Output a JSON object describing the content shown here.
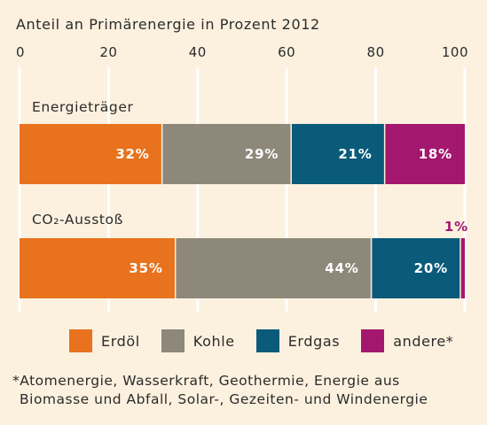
{
  "chart_data": {
    "type": "bar",
    "orientation": "horizontal",
    "stacked": true,
    "title": "Anteil an Primärenergie in Prozent 2012",
    "xlim": [
      0,
      100
    ],
    "x_ticks": [
      "0",
      "20",
      "40",
      "60",
      "80",
      "100"
    ],
    "grid": true,
    "categories": [
      "Energieträger",
      "CO₂-Ausstoß"
    ],
    "series": [
      {
        "name": "Erdöl",
        "color": "#e8721d",
        "values": [
          32,
          35
        ],
        "labels": [
          "32%",
          "35%"
        ]
      },
      {
        "name": "Kohle",
        "color": "#8e887a",
        "values": [
          29,
          44
        ],
        "labels": [
          "29%",
          "44%"
        ]
      },
      {
        "name": "Erdgas",
        "color": "#0a5a7a",
        "values": [
          21,
          20
        ],
        "labels": [
          "21%",
          "20%"
        ]
      },
      {
        "name": "andere*",
        "color": "#a4176f",
        "values": [
          18,
          1
        ],
        "labels": [
          "18%",
          "1%"
        ]
      }
    ],
    "legend_position": "bottom"
  },
  "footnote": {
    "line1": "*Atomenergie, Wasserkraft, Geothermie, Energie aus",
    "line2": "Biomasse und Abfall, Solar-, Gezeiten- und Windenergie"
  }
}
